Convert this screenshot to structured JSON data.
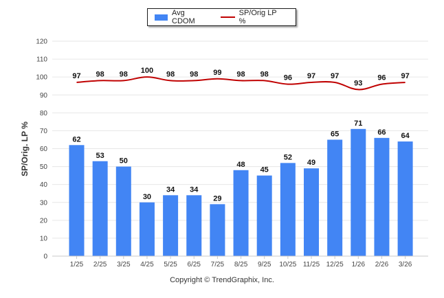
{
  "chart_data": {
    "type": "bar",
    "categories": [
      "1/25",
      "2/25",
      "3/25",
      "4/25",
      "5/25",
      "6/25",
      "7/25",
      "8/25",
      "9/25",
      "10/25",
      "11/25",
      "12/25",
      "1/26",
      "2/26",
      "3/26"
    ],
    "series": [
      {
        "name": "Avg CDOM",
        "type": "bar",
        "color": "#4285f4",
        "values": [
          62,
          53,
          50,
          30,
          34,
          34,
          29,
          48,
          45,
          52,
          49,
          65,
          71,
          66,
          64
        ]
      },
      {
        "name": "SP/Orig LP %",
        "type": "line",
        "color": "#c00000",
        "values": [
          97,
          98,
          98,
          100,
          98,
          98,
          99,
          98,
          98,
          96,
          97,
          97,
          93,
          96,
          97
        ]
      }
    ],
    "ylabel": "SP/Orig. LP %",
    "ylim": [
      0,
      120
    ],
    "yticks": [
      0,
      10,
      20,
      30,
      40,
      50,
      60,
      70,
      80,
      90,
      100,
      110,
      120
    ],
    "grid": true,
    "legend_position": "top-center"
  },
  "copyright": "Copyright © TrendGraphix, Inc."
}
